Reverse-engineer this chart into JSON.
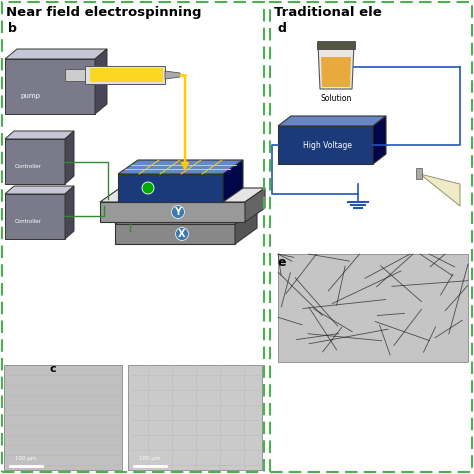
{
  "title_left": "Near field electrospinning",
  "title_right": "Traditional ele",
  "border_color": "#4caf50",
  "bg_color": "#ffffff",
  "gray_color": "#7a7a8a",
  "blue_color": "#1a3a7a",
  "green_line_color": "#2e8b2e",
  "yellow_color": "#ffd700",
  "dark_gray": "#555555",
  "light_gray": "#aaaaaa",
  "scale_bar_text": "100 μm",
  "high_voltage_text": "High Voltage",
  "solution_text": "Solution",
  "pump_text": "pump",
  "x_label": "X",
  "y_label": "Y"
}
